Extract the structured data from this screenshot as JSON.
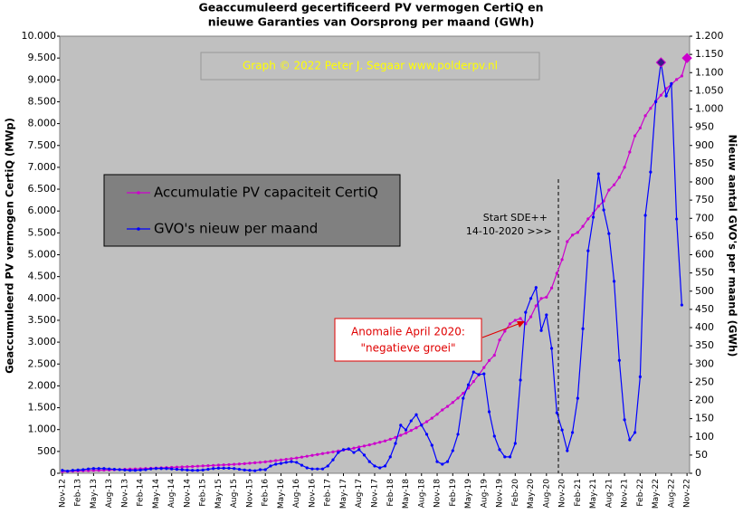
{
  "chart_data": {
    "type": "line",
    "title": [
      "Geaccumuleerd gecertificeerd PV vermogen CertiQ en",
      "nieuwe Garanties van Oorsprong per maand (GWh)"
    ],
    "watermark": "Graph © 2022 Peter J. Segaar  www.polderpv.nl",
    "ylabel": "Geaccumuleerd PV vermogen CertiQ (MWp)",
    "y2label": "Nieuw aantal GVO's per maand (GWh)",
    "annotations": [
      "Start SDE++",
      "14-10-2020  >>>",
      "Anomalie April 2020:",
      "\"negatieve groei\""
    ],
    "categories": [
      "Nov-12",
      null,
      null,
      "Feb-13",
      null,
      null,
      "May-13",
      null,
      null,
      "Aug-13",
      null,
      null,
      "Nov-13",
      null,
      null,
      "Feb-14",
      null,
      null,
      "May-14",
      null,
      null,
      "Aug-14",
      null,
      null,
      "Nov-14",
      null,
      null,
      "Feb-15",
      null,
      null,
      "May-15",
      null,
      null,
      "Aug-15",
      null,
      null,
      "Nov-15",
      null,
      null,
      "Feb-16",
      null,
      null,
      "May-16",
      null,
      null,
      "Aug-16",
      null,
      null,
      "Nov-16",
      null,
      null,
      "Feb-17",
      null,
      null,
      "May-17",
      null,
      null,
      "Aug-17",
      null,
      null,
      "Nov-17",
      null,
      null,
      "Feb-18",
      null,
      null,
      "May-18",
      null,
      null,
      "Aug-18",
      null,
      null,
      "Nov-18",
      null,
      null,
      "Feb-19",
      null,
      null,
      "May-19",
      null,
      null,
      "Aug-19",
      null,
      null,
      "Nov-19",
      null,
      null,
      "Feb-20",
      null,
      null,
      "May-20",
      null,
      null,
      "Aug-20",
      null,
      null,
      "Nov-20",
      null,
      null,
      "Feb-21",
      null,
      null,
      "May-21",
      null,
      null,
      "Aug-21",
      null,
      null,
      "Nov-21",
      null,
      null,
      "Feb-22",
      null,
      null,
      "May-22",
      null,
      null,
      "Aug-22",
      null,
      null,
      "Nov-22"
    ],
    "series": [
      {
        "name": "Accumulatie PV capaciteit CertiQ",
        "color": "#cc00cc",
        "axis": "y",
        "values": [
          40,
          44,
          48,
          52,
          56,
          60,
          64,
          68,
          72,
          76,
          80,
          85,
          90,
          95,
          100,
          105,
          110,
          115,
          120,
          125,
          130,
          135,
          140,
          145,
          150,
          156,
          162,
          168,
          174,
          180,
          186,
          192,
          198,
          204,
          212,
          220,
          230,
          240,
          250,
          262,
          275,
          290,
          305,
          320,
          335,
          350,
          370,
          390,
          410,
          430,
          450,
          470,
          490,
          510,
          530,
          550,
          575,
          600,
          625,
          650,
          680,
          710,
          740,
          780,
          820,
          870,
          920,
          980,
          1040,
          1110,
          1180,
          1260,
          1350,
          1450,
          1530,
          1620,
          1720,
          1830,
          1950,
          2100,
          2250,
          2420,
          2580,
          2700,
          3050,
          3250,
          3420,
          3500,
          3540,
          3420,
          3580,
          3830,
          4000,
          4030,
          4240,
          4575,
          4890,
          5300,
          5450,
          5510,
          5650,
          5820,
          5950,
          6110,
          6230,
          6480,
          6600,
          6770,
          7000,
          7350,
          7720,
          7900,
          8180,
          8350,
          8510,
          8650,
          8800,
          8900,
          9010,
          9090,
          9500
        ]
      },
      {
        "name": "GVO's nieuw per maand",
        "color": "#0000ff",
        "axis": "y2",
        "values": [
          8,
          6,
          8,
          9,
          10,
          12,
          13,
          13,
          13,
          12,
          11,
          10,
          9,
          8,
          8,
          9,
          10,
          12,
          13,
          13,
          13,
          12,
          11,
          10,
          9,
          8,
          8,
          9,
          11,
          13,
          14,
          14,
          14,
          13,
          11,
          9,
          8,
          7,
          10,
          10,
          20,
          25,
          27,
          30,
          32,
          30,
          22,
          15,
          12,
          12,
          12,
          20,
          37,
          57,
          65,
          67,
          57,
          65,
          50,
          32,
          20,
          15,
          20,
          45,
          82,
          132,
          119,
          144,
          161,
          132,
          107,
          77,
          32,
          25,
          32,
          62,
          107,
          206,
          243,
          278,
          271,
          273,
          169,
          102,
          65,
          45,
          45,
          82,
          256,
          442,
          480,
          510,
          392,
          435,
          343,
          166,
          119,
          62,
          112,
          206,
          397,
          611,
          703,
          822,
          723,
          658,
          527,
          310,
          147,
          92,
          112,
          265,
          708,
          827,
          1020,
          1128,
          1036,
          1070,
          698,
          462,
          null
        ]
      }
    ],
    "ylim": [
      0,
      10000
    ],
    "yticks": [
      0,
      500,
      {
        "value": 1000,
        "label": "1.000"
      },
      {
        "value": 1500,
        "label": "1.500"
      },
      {
        "value": 2000,
        "label": "2.000"
      },
      {
        "value": 2500,
        "label": "2.500"
      },
      {
        "value": 3000,
        "label": "3.000"
      },
      {
        "value": 3500,
        "label": "3.500"
      },
      {
        "value": 4000,
        "label": "4.000"
      },
      {
        "value": 4500,
        "label": "4.500"
      },
      {
        "value": 5000,
        "label": "5.000"
      },
      {
        "value": 5500,
        "label": "5.500"
      },
      {
        "value": 6000,
        "label": "6.000"
      },
      {
        "value": 6500,
        "label": "6.500"
      },
      {
        "value": 7000,
        "label": "7.000"
      },
      {
        "value": 7500,
        "label": "7.500"
      },
      {
        "value": 8000,
        "label": "8.000"
      },
      {
        "value": 8500,
        "label": "8.500"
      },
      {
        "value": 9000,
        "label": "9.000"
      },
      {
        "value": 9500,
        "label": "9.500"
      },
      {
        "value": 10000,
        "label": "10.000"
      }
    ],
    "y2lim": [
      0,
      1200
    ],
    "y2ticks": [
      0,
      50,
      100,
      150,
      200,
      250,
      300,
      350,
      400,
      450,
      500,
      550,
      600,
      650,
      700,
      750,
      800,
      850,
      900,
      950,
      {
        "value": 1000,
        "label": "1.000"
      },
      {
        "value": 1050,
        "label": "1.050"
      },
      {
        "value": 1100,
        "label": "1.100"
      },
      {
        "value": 1150,
        "label": "1.150"
      },
      {
        "value": 1200,
        "label": "1.200"
      }
    ],
    "grid": false,
    "legend": "upper left",
    "plot_background": "#c0c0c0"
  }
}
